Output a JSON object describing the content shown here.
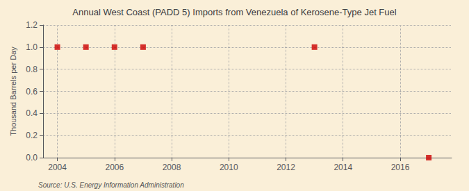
{
  "chart_data": {
    "type": "scatter",
    "title": "Annual West Coast (PADD 5) Imports from Venezuela of Kerosene-Type Jet Fuel",
    "ylabel": "Thousand Barrels per Day",
    "annotations": [
      "Source: U.S. Energy Information Administration"
    ],
    "x": [
      2004,
      2005,
      2006,
      2007,
      2013,
      2017
    ],
    "values": [
      1.0,
      1.0,
      1.0,
      1.0,
      1.0,
      0.0
    ],
    "color": "#cc0000",
    "marker": "square",
    "xlim": [
      2003.5,
      2017.8
    ],
    "ylim": [
      0.0,
      1.2
    ],
    "xticks": [
      2004,
      2006,
      2008,
      2010,
      2012,
      2014,
      2016
    ],
    "yticks": [
      {
        "value": 0.0,
        "label": "0.0"
      },
      0.2,
      0.4,
      0.6,
      0.8,
      {
        "value": 1.0,
        "label": "1.0"
      },
      1.2
    ],
    "grid": true
  }
}
